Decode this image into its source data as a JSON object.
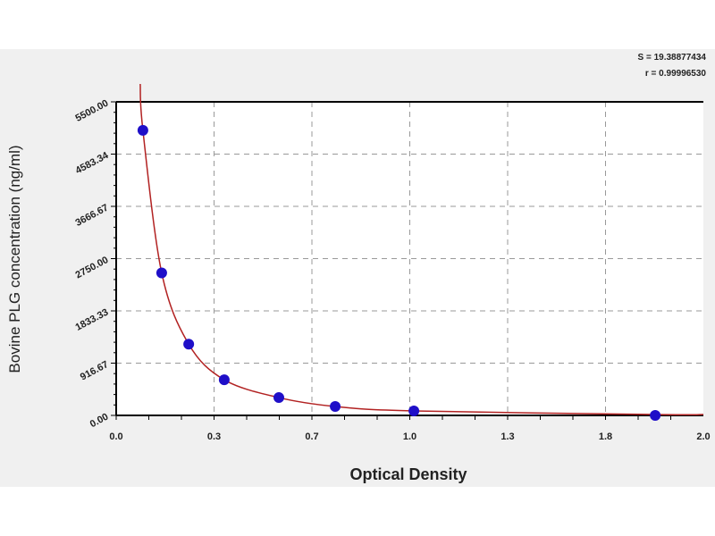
{
  "chart_data": {
    "type": "scatter",
    "xlabel": "Optical Density",
    "ylabel": "Bovine PLG concentration (ng/ml)",
    "xlim": [
      0,
      2.0
    ],
    "ylim": [
      0,
      5500
    ],
    "x_tick_labels": [
      "0.0",
      "0.3",
      "0.7",
      "1.0",
      "1.3",
      "1.8",
      "2.0"
    ],
    "y_tick_labels": [
      "0.00",
      "916.67",
      "1833.33",
      "2750.00",
      "3666.67",
      "4583.34",
      "5500.00"
    ],
    "grid": true,
    "annotations": [
      "S = 19.38877434",
      "r = 0.99996530"
    ],
    "points": {
      "x": [
        0.091,
        0.155,
        0.247,
        0.368,
        0.554,
        0.746,
        1.014,
        1.836
      ],
      "y": [
        5000,
        2500,
        1250,
        625,
        312.5,
        156,
        78,
        0
      ]
    },
    "colors": {
      "points": "#1f0fc8",
      "curve": "#b22222"
    }
  }
}
